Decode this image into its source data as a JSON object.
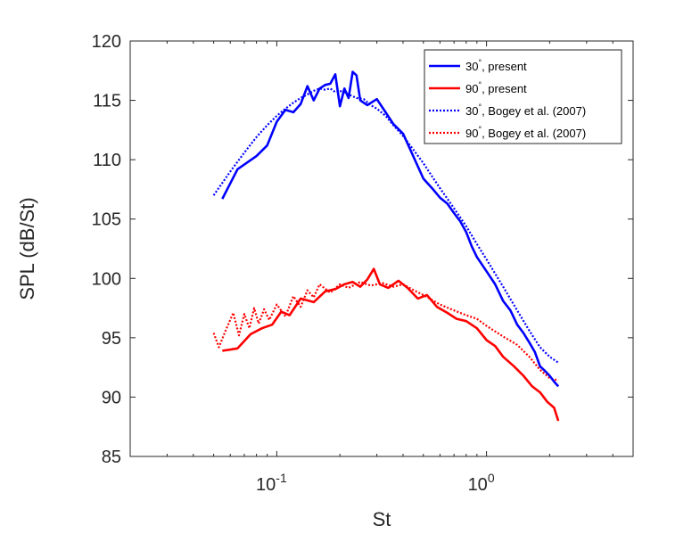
{
  "chart_data": {
    "type": "line",
    "title": "",
    "xlabel": "St",
    "ylabel": "SPL (dB/St)",
    "xscale": "log",
    "xlim": [
      0.02,
      5
    ],
    "ylim": [
      85,
      120
    ],
    "xticks": [
      {
        "value": 0.1,
        "base": "10",
        "exp": "-1"
      },
      {
        "value": 1,
        "base": "10",
        "exp": "0"
      }
    ],
    "yticks": [
      85,
      90,
      95,
      100,
      105,
      110,
      115,
      120
    ],
    "legend_position": "top-right",
    "series": [
      {
        "name": "30°, present",
        "angle": "30",
        "label_suffix": ", present",
        "color": "#0000ff",
        "style": "solid",
        "x": [
          0.055,
          0.065,
          0.08,
          0.09,
          0.1,
          0.11,
          0.12,
          0.13,
          0.14,
          0.15,
          0.16,
          0.17,
          0.18,
          0.19,
          0.2,
          0.21,
          0.22,
          0.23,
          0.24,
          0.25,
          0.27,
          0.3,
          0.33,
          0.36,
          0.4,
          0.45,
          0.5,
          0.55,
          0.6,
          0.65,
          0.7,
          0.75,
          0.8,
          0.85,
          0.9,
          1.0,
          1.1,
          1.2,
          1.3,
          1.4,
          1.5,
          1.6,
          1.7,
          1.8,
          1.9,
          2.0,
          2.1,
          2.2
        ],
        "y": [
          106.7,
          109.2,
          110.3,
          111.2,
          113.2,
          114.2,
          114.0,
          114.7,
          116.2,
          115.0,
          116.0,
          116.3,
          116.4,
          117.2,
          114.5,
          116.0,
          115.2,
          117.4,
          117.1,
          115.0,
          114.6,
          115.1,
          114.0,
          113.0,
          112.2,
          110.2,
          108.4,
          107.6,
          106.8,
          106.3,
          105.5,
          104.8,
          103.9,
          102.7,
          101.8,
          100.6,
          99.5,
          98.1,
          97.3,
          96.1,
          95.4,
          94.6,
          93.8,
          92.6,
          92.2,
          91.8,
          91.3,
          90.9
        ]
      },
      {
        "name": "90°, present",
        "angle": "90",
        "label_suffix": ", present",
        "color": "#ff0000",
        "style": "solid",
        "x": [
          0.055,
          0.065,
          0.075,
          0.085,
          0.095,
          0.105,
          0.115,
          0.13,
          0.15,
          0.17,
          0.19,
          0.21,
          0.23,
          0.25,
          0.27,
          0.29,
          0.31,
          0.34,
          0.38,
          0.42,
          0.47,
          0.52,
          0.58,
          0.65,
          0.72,
          0.8,
          0.9,
          1.0,
          1.1,
          1.2,
          1.35,
          1.5,
          1.65,
          1.8,
          1.95,
          2.1,
          2.2
        ],
        "y": [
          93.9,
          94.1,
          95.3,
          95.8,
          96.1,
          97.2,
          96.9,
          98.3,
          98.0,
          98.9,
          99.1,
          99.5,
          99.7,
          99.3,
          99.9,
          100.8,
          99.5,
          99.2,
          99.8,
          99.2,
          98.3,
          98.6,
          97.6,
          97.1,
          96.6,
          96.4,
          95.8,
          94.8,
          94.3,
          93.4,
          92.6,
          91.8,
          90.9,
          90.4,
          89.6,
          89.1,
          88.0
        ]
      },
      {
        "name": "30°, Bogey et al. (2007)",
        "angle": "30",
        "label_suffix": ", Bogey et al. (2007)",
        "color": "#0000ff",
        "style": "dotted",
        "x": [
          0.05,
          0.06,
          0.07,
          0.08,
          0.09,
          0.1,
          0.11,
          0.12,
          0.13,
          0.14,
          0.15,
          0.16,
          0.17,
          0.18,
          0.19,
          0.2,
          0.22,
          0.24,
          0.26,
          0.28,
          0.3,
          0.33,
          0.36,
          0.4,
          0.45,
          0.5,
          0.55,
          0.6,
          0.7,
          0.8,
          0.9,
          1.0,
          1.2,
          1.4,
          1.6,
          1.8,
          2.0,
          2.2
        ],
        "y": [
          107.0,
          109.0,
          110.6,
          111.9,
          112.9,
          113.7,
          114.3,
          114.8,
          115.2,
          115.5,
          115.8,
          116.0,
          115.9,
          116.0,
          115.7,
          115.8,
          115.5,
          115.2,
          115.1,
          114.6,
          114.3,
          113.7,
          112.9,
          112.0,
          110.8,
          109.7,
          108.6,
          107.6,
          105.9,
          104.4,
          102.9,
          101.6,
          99.3,
          97.3,
          95.6,
          94.2,
          93.4,
          92.9
        ]
      },
      {
        "name": "90°, Bogey et al. (2007)",
        "angle": "90",
        "label_suffix": ", Bogey et al. (2007)",
        "color": "#ff0000",
        "style": "dotted",
        "x": [
          0.05,
          0.053,
          0.057,
          0.062,
          0.066,
          0.07,
          0.074,
          0.078,
          0.082,
          0.087,
          0.092,
          0.1,
          0.11,
          0.12,
          0.13,
          0.14,
          0.15,
          0.16,
          0.18,
          0.2,
          0.22,
          0.25,
          0.28,
          0.32,
          0.36,
          0.4,
          0.45,
          0.5,
          0.6,
          0.7,
          0.8,
          0.9,
          1.0,
          1.2,
          1.4,
          1.6,
          1.8,
          2.0,
          2.2
        ],
        "y": [
          95.4,
          94.2,
          95.6,
          97.1,
          95.2,
          97.0,
          95.8,
          97.5,
          96.2,
          97.4,
          96.5,
          97.8,
          96.8,
          98.5,
          97.6,
          99.0,
          98.4,
          99.5,
          98.8,
          99.5,
          99.2,
          99.7,
          99.4,
          99.6,
          99.3,
          99.5,
          99.0,
          98.6,
          97.8,
          97.3,
          96.9,
          96.6,
          96.0,
          95.1,
          94.4,
          93.4,
          92.3,
          91.6,
          91.4
        ]
      }
    ]
  }
}
